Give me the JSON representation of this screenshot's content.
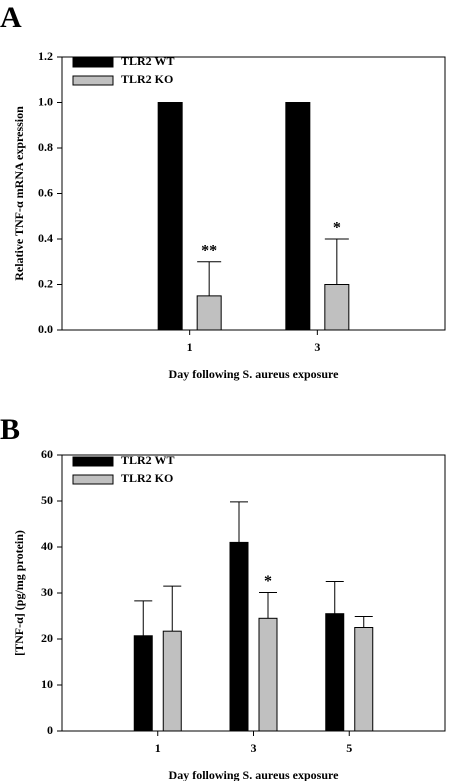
{
  "chart_data": [
    {
      "type": "bar",
      "panel_label": "A",
      "ylabel": "Relative TNF-α mRNA expression",
      "xlabel": "Day following S. aureus exposure",
      "categories": [
        "1",
        "3"
      ],
      "series": [
        {
          "name": "TLR2 WT",
          "color": "#000000",
          "values": [
            1.0,
            1.0
          ]
        },
        {
          "name": "TLR2 KO",
          "color": "#c0c0c0",
          "values": [
            0.15,
            0.2
          ],
          "errors": [
            0.15,
            0.2
          ],
          "annotations": [
            "**",
            "*"
          ]
        }
      ],
      "ylim": [
        0,
        1.2
      ],
      "yticks": [
        {
          "value": 0,
          "label": "0.0"
        },
        {
          "value": 0.2,
          "label": "0.2"
        },
        {
          "value": 0.4,
          "label": "0.4"
        },
        {
          "value": 0.6,
          "label": "0.6"
        },
        {
          "value": 0.8,
          "label": "0.8"
        },
        {
          "value": 1.0,
          "label": "1.0"
        },
        {
          "value": 1.2,
          "label": "1.2"
        }
      ],
      "legend": "upper left"
    },
    {
      "type": "bar",
      "panel_label": "B",
      "ylabel": "[TNF-α] (pg/mg protein)",
      "xlabel": "Day following S. aureus exposure",
      "categories": [
        "1",
        "3",
        "5"
      ],
      "series": [
        {
          "name": "TLR2 WT",
          "color": "#000000",
          "values": [
            20.7,
            41.0,
            25.5
          ],
          "errors": [
            7.6,
            8.8,
            7.0
          ]
        },
        {
          "name": "TLR2 KO",
          "color": "#c0c0c0",
          "values": [
            21.7,
            24.5,
            22.5
          ],
          "errors": [
            9.8,
            5.6,
            2.4
          ],
          "annotations": [
            null,
            "*",
            null
          ]
        }
      ],
      "ylim": [
        0,
        60
      ],
      "yticks": [
        0,
        10,
        20,
        30,
        40,
        50,
        60
      ],
      "legend": "upper left"
    }
  ]
}
